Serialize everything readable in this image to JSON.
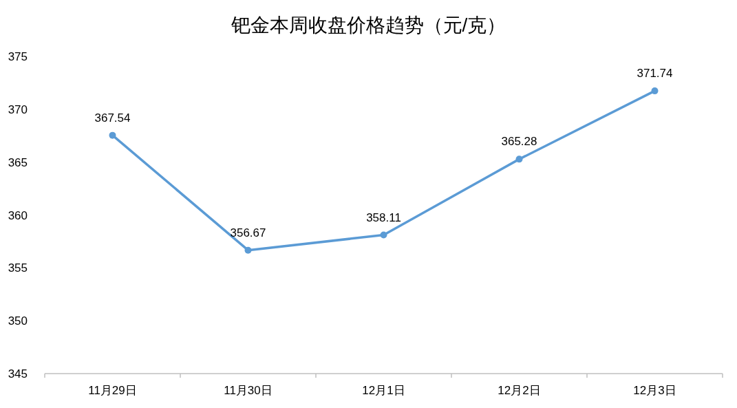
{
  "chart_data": {
    "type": "line",
    "title": "钯金本周收盘价格趋势（元/克）",
    "categories": [
      "11月29日",
      "11月30日",
      "12月1日",
      "12月2日",
      "12月3日"
    ],
    "series": [
      {
        "color": "#5b9bd5",
        "values": [
          367.54,
          356.67,
          358.11,
          365.28,
          371.74
        ]
      }
    ],
    "ylim": [
      345,
      375
    ],
    "yticks": [
      345,
      350,
      355,
      360,
      365,
      370,
      375
    ],
    "data_labels": true,
    "marker": "circle",
    "grid": false
  }
}
